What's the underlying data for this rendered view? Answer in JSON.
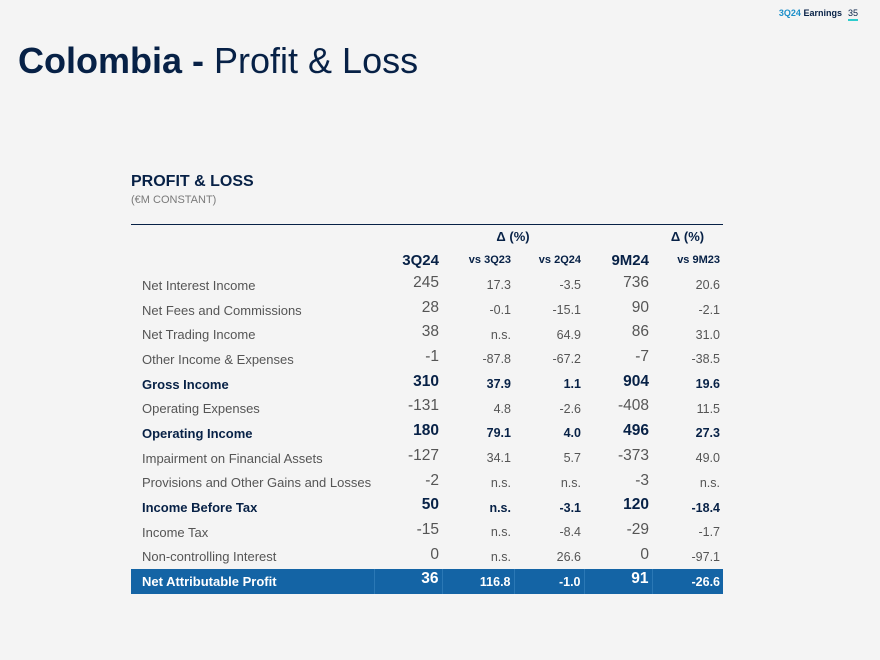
{
  "header": {
    "page_tag_accent": "3Q24",
    "page_tag_rest": "Earnings",
    "page_number": "35"
  },
  "title": {
    "bold": "Colombia -",
    "rest": "Profit & Loss"
  },
  "section": {
    "title": "PROFIT & LOSS",
    "subtitle": "(€M CONSTANT)"
  },
  "table": {
    "delta_label": "Δ (%)",
    "columns": [
      "3Q24",
      "vs 3Q23",
      "vs 2Q24",
      "9M24",
      "vs 9M23"
    ],
    "rows": [
      {
        "label": "Net Interest Income",
        "values": [
          "245",
          "17.3",
          "-3.5",
          "736",
          "20.6"
        ],
        "style": "normal"
      },
      {
        "label": "Net Fees and Commissions",
        "values": [
          "28",
          "-0.1",
          "-15.1",
          "90",
          "-2.1"
        ],
        "style": "normal"
      },
      {
        "label": "Net Trading Income",
        "values": [
          "38",
          "n.s.",
          "64.9",
          "86",
          "31.0"
        ],
        "style": "normal"
      },
      {
        "label": "Other Income & Expenses",
        "values": [
          "-1",
          "-87.8",
          "-67.2",
          "-7",
          "-38.5"
        ],
        "style": "normal"
      },
      {
        "label": "Gross Income",
        "values": [
          "310",
          "37.9",
          "1.1",
          "904",
          "19.6"
        ],
        "style": "bold"
      },
      {
        "label": "Operating Expenses",
        "values": [
          "-131",
          "4.8",
          "-2.6",
          "-408",
          "11.5"
        ],
        "style": "normal"
      },
      {
        "label": "Operating Income",
        "values": [
          "180",
          "79.1",
          "4.0",
          "496",
          "27.3"
        ],
        "style": "bold"
      },
      {
        "label": "Impairment on Financial Assets",
        "values": [
          "-127",
          "34.1",
          "5.7",
          "-373",
          "49.0"
        ],
        "style": "normal"
      },
      {
        "label": "Provisions and Other Gains and Losses",
        "values": [
          "-2",
          "n.s.",
          "n.s.",
          "-3",
          "n.s."
        ],
        "style": "normal"
      },
      {
        "label": "Income Before Tax",
        "values": [
          "50",
          "n.s.",
          "-3.1",
          "120",
          "-18.4"
        ],
        "style": "bold"
      },
      {
        "label": "Income Tax",
        "values": [
          "-15",
          "n.s.",
          "-8.4",
          "-29",
          "-1.7"
        ],
        "style": "normal"
      },
      {
        "label": "Non-controlling Interest",
        "values": [
          "0",
          "n.s.",
          "26.6",
          "0",
          "-97.1"
        ],
        "style": "normal"
      },
      {
        "label": "Net Attributable Profit",
        "values": [
          "36",
          "116.8",
          "-1.0",
          "91",
          "-26.6"
        ],
        "style": "final"
      }
    ]
  }
}
